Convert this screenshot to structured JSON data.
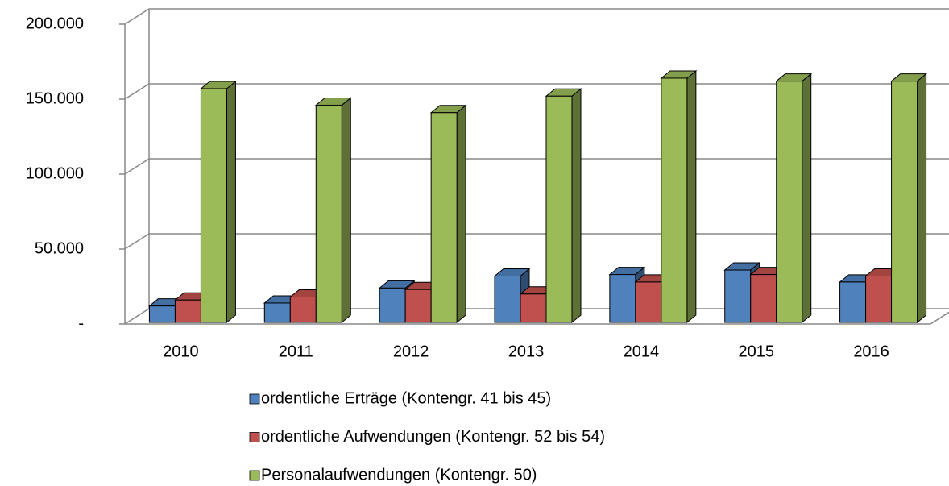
{
  "chart_data": {
    "type": "bar3d",
    "categories": [
      "2010",
      "2011",
      "2012",
      "2013",
      "2014",
      "2015",
      "2016"
    ],
    "series": [
      {
        "name": "ordentliche Erträge (Kontengr. 41 bis 45)",
        "color": "#4f81bd",
        "values": [
          12000,
          14000,
          24000,
          32000,
          33000,
          36000,
          28000
        ]
      },
      {
        "name": "ordentliche Aufwendungen (Kontengr. 52 bis 54)",
        "color": "#c0504d",
        "values": [
          16000,
          18000,
          23000,
          20000,
          28000,
          33000,
          32000
        ]
      },
      {
        "name": "Personalaufwendungen (Kontengr. 50)",
        "color": "#9bbb59",
        "values": [
          157000,
          146000,
          141000,
          152000,
          164000,
          162000,
          162000
        ]
      }
    ],
    "ylim": [
      0,
      200000
    ],
    "yticks": [
      {
        "value": 0,
        "label": "-"
      },
      {
        "value": 50000,
        "label": "50.000"
      },
      {
        "value": 100000,
        "label": "100.000"
      },
      {
        "value": 150000,
        "label": "150.000"
      },
      {
        "value": 200000,
        "label": "200.000"
      }
    ],
    "grid": true
  }
}
